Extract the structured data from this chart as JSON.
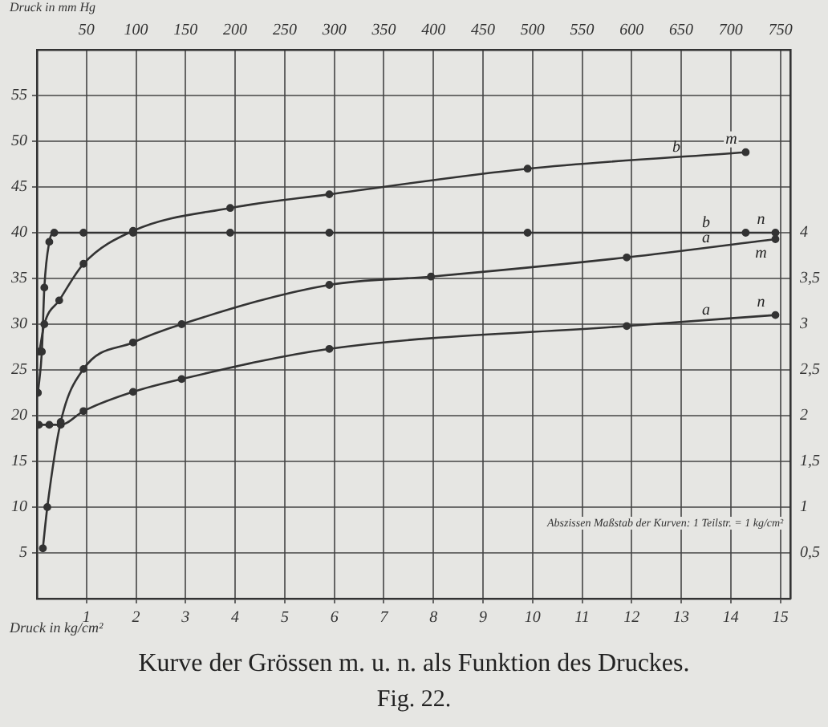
{
  "chart_data": {
    "type": "line",
    "title": "Kurve der Grössen m. u. n. als Funktion des Druckes.",
    "xlabel": "Druck in kg/cm²",
    "x2label": "Druck in mm Hg",
    "marker": "circle",
    "grid": true,
    "legend": false,
    "xlim": [
      0,
      15.2
    ],
    "xticks": [
      1,
      2,
      3,
      4,
      5,
      6,
      7,
      8,
      9,
      10,
      11,
      12,
      13,
      14,
      15
    ],
    "x2lim": [
      0,
      760
    ],
    "x2ticks": [
      50,
      100,
      150,
      200,
      250,
      300,
      350,
      400,
      450,
      500,
      550,
      600,
      650,
      700,
      750
    ],
    "ylim": [
      0,
      60
    ],
    "yticks": [
      5,
      10,
      15,
      20,
      25,
      30,
      35,
      40,
      45,
      50,
      55
    ],
    "y2lim": [
      0,
      6
    ],
    "y2ticks": [
      {
        "value": 0.5,
        "label": "0,5"
      },
      1,
      {
        "value": 1.5,
        "label": "1,5"
      },
      2,
      {
        "value": 2.5,
        "label": "2,5"
      },
      3,
      {
        "value": 3.5,
        "label": "3,5"
      },
      4
    ],
    "series": [
      {
        "name": "b",
        "color": "#333333",
        "x": [
          0.05,
          0.15,
          0.45,
          0.94,
          1.94,
          3.9,
          5.9,
          9.9,
          14.3
        ],
        "values": [
          27,
          30,
          32.6,
          36.6,
          40.2,
          42.7,
          44.2,
          47,
          48.8
        ]
      },
      {
        "name": "b",
        "color": "#333333",
        "x": [
          0.02,
          0.1,
          0.15,
          0.25,
          0.35,
          0.94,
          1.94,
          3.9,
          5.9,
          9.9,
          14.3,
          14.9
        ],
        "values": [
          22.5,
          27,
          34,
          39,
          40,
          40,
          40,
          40,
          40,
          40,
          40,
          40
        ]
      },
      {
        "name": "a",
        "color": "#333333",
        "x": [
          0.12,
          0.21,
          0.48,
          0.94,
          1.94,
          2.92,
          5.9,
          7.95,
          11.9,
          14.9
        ],
        "values": [
          5.5,
          10,
          19.3,
          25.1,
          28,
          30,
          34.3,
          35.2,
          37.3,
          39.3
        ]
      },
      {
        "name": "a",
        "color": "#333333",
        "x": [
          0.04,
          0.25,
          0.48,
          0.94,
          1.94,
          2.92,
          5.9,
          11.9,
          14.9
        ],
        "values": [
          19,
          19,
          19,
          20.5,
          22.6,
          24,
          27.3,
          29.8,
          31
        ]
      }
    ],
    "annotations": [
      "m",
      "n",
      "m",
      "n",
      "Abszissen Maßstab der Kurven: 1 Teilstr. = 1 kg/cm²",
      "Fig. 22."
    ]
  }
}
